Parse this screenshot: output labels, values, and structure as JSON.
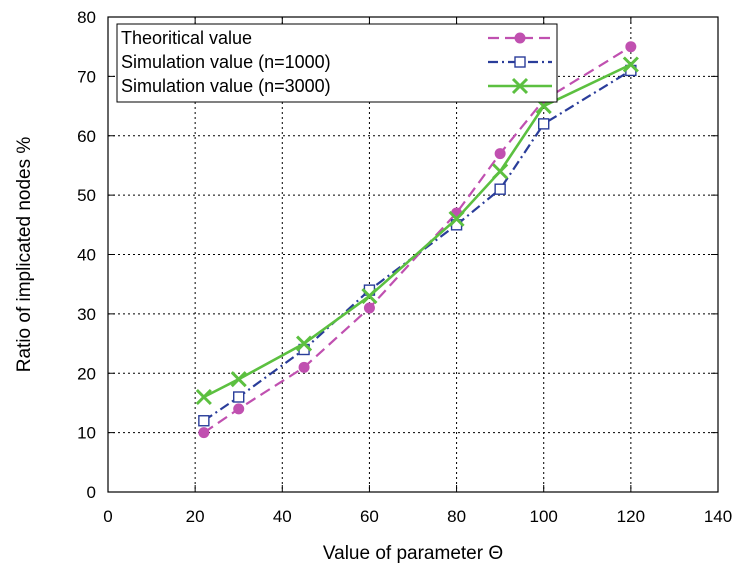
{
  "chart_data": {
    "type": "line",
    "title": "",
    "xlabel": "Value of parameter Θ",
    "ylabel": "Ratio of implicated nodes %",
    "xlim": [
      0,
      140
    ],
    "ylim": [
      0,
      80
    ],
    "xticks": [
      0,
      20,
      40,
      60,
      80,
      100,
      120,
      140
    ],
    "yticks": [
      0,
      10,
      20,
      30,
      40,
      50,
      60,
      70,
      80
    ],
    "xtick_labels": [
      "0",
      "20",
      "40",
      "60",
      "80",
      "100",
      "120",
      "140"
    ],
    "ytick_labels": [
      "0",
      "10",
      "20",
      "30",
      "40",
      "50",
      "60",
      "70",
      "80"
    ],
    "grid": true,
    "legend_position": "top-left",
    "series": [
      {
        "name": "Theoritical value",
        "color": "#c050b0",
        "marker": "filled-circle",
        "line_style": "dashed",
        "x": [
          22,
          30,
          45,
          60,
          80,
          90,
          100,
          120
        ],
        "values": [
          10,
          14,
          21,
          31,
          47,
          57,
          66,
          75
        ]
      },
      {
        "name": "Simulation value (n=1000)",
        "color": "#2a3d9a",
        "marker": "open-square",
        "line_style": "dash-dot",
        "x": [
          22,
          30,
          45,
          60,
          80,
          90,
          100,
          120
        ],
        "values": [
          12,
          16,
          24,
          34,
          45,
          51,
          62,
          71
        ]
      },
      {
        "name": "Simulation value (n=3000)",
        "color": "#5cc040",
        "marker": "x",
        "line_style": "solid",
        "x": [
          22,
          30,
          45,
          60,
          80,
          90,
          100,
          120
        ],
        "values": [
          16,
          19,
          25,
          33,
          46,
          54,
          65,
          72
        ]
      }
    ]
  }
}
